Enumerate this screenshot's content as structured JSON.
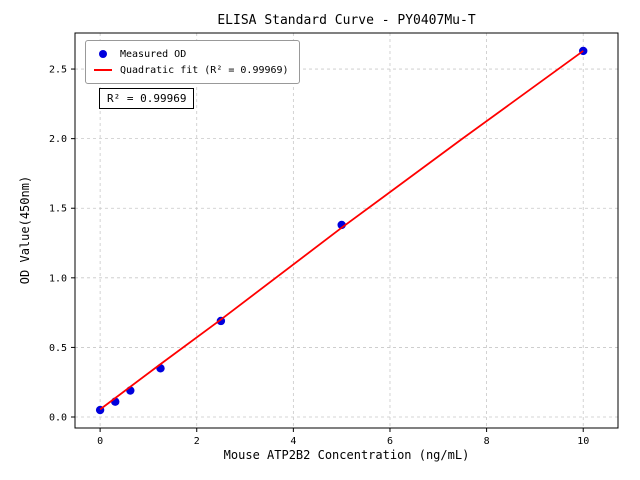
{
  "chart_data": {
    "type": "scatter",
    "title": "ELISA Standard Curve - PY0407Mu-T",
    "xlabel": "Mouse ATP2B2 Concentration (ng/mL)",
    "ylabel": "OD Value(450nm)",
    "xlim": [
      -0.52,
      10.72
    ],
    "ylim": [
      -0.079,
      2.759
    ],
    "xticks": [
      0,
      2,
      4,
      6,
      8,
      10
    ],
    "xtick_labels": [
      "0",
      "2",
      "4",
      "6",
      "8",
      "10"
    ],
    "yticks": [
      0.0,
      0.5,
      1.0,
      1.5,
      2.0,
      2.5
    ],
    "ytick_labels": [
      "0.0",
      "0.5",
      "1.0",
      "1.5",
      "2.0",
      "2.5"
    ],
    "grid": true,
    "grid_color": "#c8c8c8",
    "legend": {
      "position": "upper-left",
      "entries": [
        {
          "label": "Measured OD",
          "marker": "dot",
          "color": "#0000dd"
        },
        {
          "label": "Quadratic fit (R² = 0.99969)",
          "marker": "line",
          "color": "#ff0000"
        }
      ]
    },
    "annotation": "R² = 0.99969",
    "series": [
      {
        "name": "Measured OD",
        "type": "scatter",
        "color": "#0000dd",
        "points": [
          [
            0,
            0.05
          ],
          [
            0.313,
            0.11
          ],
          [
            0.625,
            0.19
          ],
          [
            1.25,
            0.35
          ],
          [
            2.5,
            0.69
          ],
          [
            5,
            1.38
          ],
          [
            10,
            2.63
          ]
        ]
      },
      {
        "name": "Quadratic fit",
        "type": "line",
        "color": "#ff0000",
        "points": [
          [
            0,
            0.055
          ],
          [
            1.25,
            0.38
          ],
          [
            2.5,
            0.7
          ],
          [
            5,
            1.36
          ],
          [
            7.5,
            2.0
          ],
          [
            10,
            2.63
          ]
        ]
      }
    ]
  }
}
